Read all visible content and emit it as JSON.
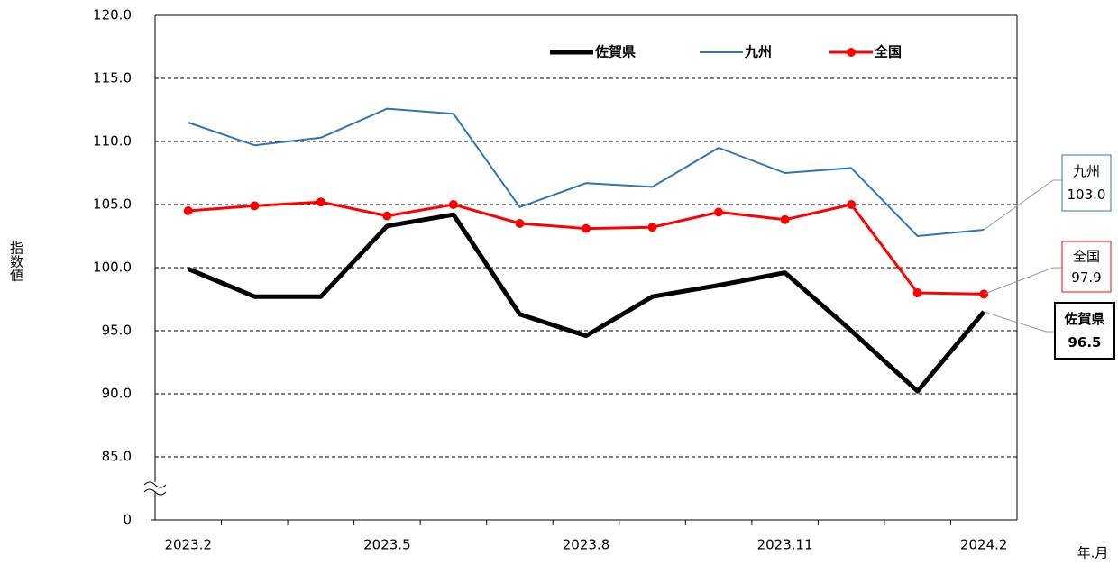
{
  "chart_data": {
    "type": "line",
    "y_label": "指数値",
    "x_label": "年.月",
    "categories": [
      "2023.2",
      null,
      null,
      "2023.5",
      null,
      null,
      "2023.8",
      null,
      null,
      "2023.11",
      null,
      null,
      "2024.2"
    ],
    "series": [
      {
        "name": "佐賀県",
        "color": "#000000",
        "width": 5,
        "markers": false,
        "values": [
          99.9,
          97.7,
          97.7,
          103.3,
          104.2,
          96.3,
          94.6,
          97.7,
          98.6,
          99.6,
          95.0,
          90.2,
          96.5
        ],
        "value_labels": [
          null,
          null,
          null,
          null,
          null,
          null,
          null,
          null,
          null,
          null,
          null,
          null,
          "96.5"
        ]
      },
      {
        "name": "九州",
        "color": "#2e75b6",
        "width": 2,
        "markers": false,
        "values": [
          111.5,
          109.7,
          110.3,
          112.6,
          112.2,
          104.8,
          106.7,
          106.4,
          109.5,
          107.5,
          107.9,
          102.5,
          103.0
        ],
        "value_labels": [
          null,
          null,
          null,
          null,
          null,
          null,
          null,
          null,
          null,
          null,
          null,
          null,
          "103.0"
        ]
      },
      {
        "name": "全国",
        "color": "#ff0000",
        "width": 3,
        "markers": true,
        "values": [
          104.5,
          104.9,
          105.2,
          104.1,
          105.0,
          103.5,
          103.1,
          103.2,
          104.4,
          103.8,
          105.0,
          98.0,
          97.9
        ],
        "value_labels": [
          null,
          null,
          null,
          null,
          null,
          null,
          null,
          null,
          null,
          null,
          null,
          null,
          "97.9"
        ]
      }
    ],
    "ylim": [
      0,
      120
    ],
    "y_break": [
      0,
      85
    ],
    "yticks": [
      0,
      {
        "value": 85,
        "label": "85.0"
      },
      {
        "value": 90,
        "label": "90.0"
      },
      {
        "value": 95,
        "label": "95.0"
      },
      {
        "value": 100,
        "label": "100.0"
      },
      {
        "value": 105,
        "label": "105.0"
      },
      {
        "value": 110,
        "label": "110.0"
      },
      {
        "value": 115,
        "label": "115.0"
      },
      {
        "value": 120,
        "label": "120.0"
      }
    ],
    "grid": true
  }
}
